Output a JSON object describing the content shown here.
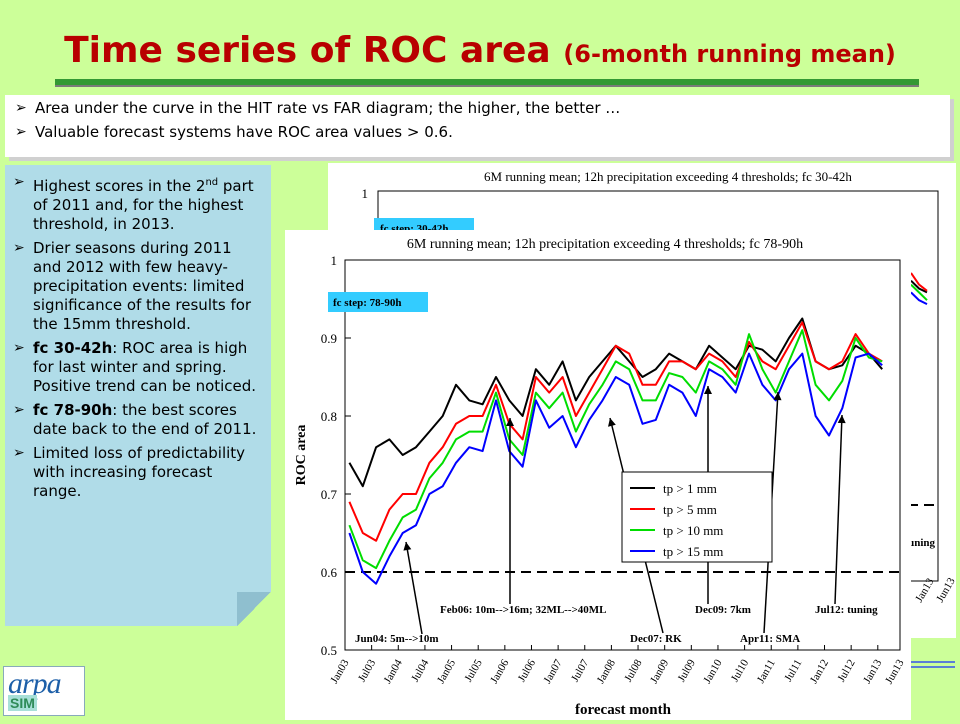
{
  "header": {
    "title_main": "Time series of ROC area",
    "title_sub": "(6-month running mean)"
  },
  "top_bullets": [
    "Area under the curve in the HIT rate vs FAR diagram; the higher, the better …",
    "Valuable forecast systems have ROC area values > 0.6."
  ],
  "left_bullets": {
    "b1_pre": "Highest scores in the 2",
    "b1_sup": "nd",
    "b1_post": " part of 2011 and, for the highest threshold, in 2013.",
    "b2": "Drier seasons during 2011 and 2012 with few heavy-precipitation events: limited significance of the results for the 15mm threshold.",
    "b3_bold": "fc 30-42h",
    "b3_rest": ": ROC area is high for last winter and spring. Positive trend can be noticed.",
    "b4_bold": "fc 78-90h",
    "b4_rest": ": the best scores date back to the end of 2011.",
    "b5": "Limited loss of predictability with increasing forecast range."
  },
  "logo": {
    "text": "arpa",
    "sub": "SIM"
  },
  "colors": {
    "title": "#b80000",
    "background": "#ccff99",
    "leftbox": "#b0dce8",
    "rule": "#339933"
  },
  "chart_data": [
    {
      "type": "line",
      "title": "6M running mean; 12h precipitation exceeding 4 thresholds; fc 30-42h",
      "tick_top": "1",
      "fc_label_partial": "fc step: 30-42h",
      "partial_annotation": "tuning",
      "x_partial_ticks": [
        "Jan13",
        "Jun13"
      ],
      "series_tail": {
        "black": [
          0.885,
          0.875,
          0.87
        ],
        "red": [
          0.895,
          0.88,
          0.872
        ],
        "green": [
          0.88,
          0.87,
          0.86
        ],
        "blue": [
          0.87,
          0.86,
          0.855
        ]
      }
    },
    {
      "type": "line",
      "title": "6M running mean; 12h precipitation exceeding 4 thresholds; fc 78-90h",
      "ylabel": "ROC area",
      "xlabel": "forecast month",
      "ylim": [
        0.5,
        1
      ],
      "y_ticks": [
        "0.5",
        "0.6",
        "0.7",
        "0.8",
        "0.9",
        "1"
      ],
      "reference_line": 0.6,
      "fc_label": "fc step: 78-90h",
      "x_ticks": [
        "Jan03",
        "Jul03",
        "Jan04",
        "Jul04",
        "Jan05",
        "Jul05",
        "Jan06",
        "Jul06",
        "Jan07",
        "Jul07",
        "Jan08",
        "Jul08",
        "Jan09",
        "Jul09",
        "Jan10",
        "Jul10",
        "Jan11",
        "Jul11",
        "Jan12",
        "Jul12",
        "Jan13",
        "Jun13"
      ],
      "legend_position": "inside-lower-right",
      "series": [
        {
          "name": "tp > 1 mm",
          "color": "#000000",
          "values": [
            0.74,
            0.71,
            0.76,
            0.77,
            0.75,
            0.76,
            0.78,
            0.8,
            0.84,
            0.82,
            0.815,
            0.85,
            0.82,
            0.8,
            0.86,
            0.84,
            0.87,
            0.82,
            0.85,
            0.87,
            0.89,
            0.87,
            0.85,
            0.86,
            0.88,
            0.87,
            0.86,
            0.89,
            0.875,
            0.86,
            0.89,
            0.885,
            0.87,
            0.9,
            0.925,
            0.87,
            0.86,
            0.865,
            0.89,
            0.88,
            0.86
          ]
        },
        {
          "name": "tp > 5 mm",
          "color": "#ff0000",
          "values": [
            0.69,
            0.65,
            0.64,
            0.68,
            0.7,
            0.7,
            0.74,
            0.76,
            0.79,
            0.8,
            0.8,
            0.84,
            0.79,
            0.77,
            0.85,
            0.83,
            0.85,
            0.8,
            0.83,
            0.86,
            0.89,
            0.88,
            0.84,
            0.84,
            0.87,
            0.87,
            0.86,
            0.88,
            0.87,
            0.85,
            0.895,
            0.87,
            0.86,
            0.89,
            0.92,
            0.87,
            0.86,
            0.87,
            0.905,
            0.88,
            0.87
          ]
        },
        {
          "name": "tp > 10 mm",
          "color": "#00dd00",
          "values": [
            0.66,
            0.615,
            0.605,
            0.64,
            0.67,
            0.68,
            0.72,
            0.74,
            0.77,
            0.78,
            0.78,
            0.83,
            0.77,
            0.75,
            0.83,
            0.81,
            0.83,
            0.78,
            0.815,
            0.84,
            0.87,
            0.86,
            0.82,
            0.82,
            0.855,
            0.85,
            0.83,
            0.87,
            0.86,
            0.84,
            0.905,
            0.86,
            0.83,
            0.87,
            0.91,
            0.84,
            0.82,
            0.845,
            0.9,
            0.875,
            0.87
          ]
        },
        {
          "name": "tp > 15 mm",
          "color": "#0000ff",
          "values": [
            0.65,
            0.6,
            0.585,
            0.62,
            0.65,
            0.66,
            0.7,
            0.71,
            0.74,
            0.76,
            0.755,
            0.82,
            0.755,
            0.735,
            0.82,
            0.785,
            0.8,
            0.76,
            0.795,
            0.82,
            0.85,
            0.84,
            0.79,
            0.795,
            0.84,
            0.83,
            0.8,
            0.86,
            0.85,
            0.83,
            0.88,
            0.84,
            0.82,
            0.86,
            0.88,
            0.8,
            0.775,
            0.81,
            0.875,
            0.88,
            0.865
          ]
        }
      ],
      "annotations": [
        {
          "text": "Jun04: 5m-->10m",
          "x_month": 18
        },
        {
          "text": "Feb06: 10m-->16m; 32ML-->40ML",
          "x_month": 37
        },
        {
          "text": "Dec07: RK",
          "x_month": 59
        },
        {
          "text": "Dec09: 7km",
          "x_month": 83
        },
        {
          "text": "Apr11: SMA",
          "x_month": 99
        },
        {
          "text": "Jul12: tuning",
          "x_month": 114
        }
      ]
    }
  ]
}
